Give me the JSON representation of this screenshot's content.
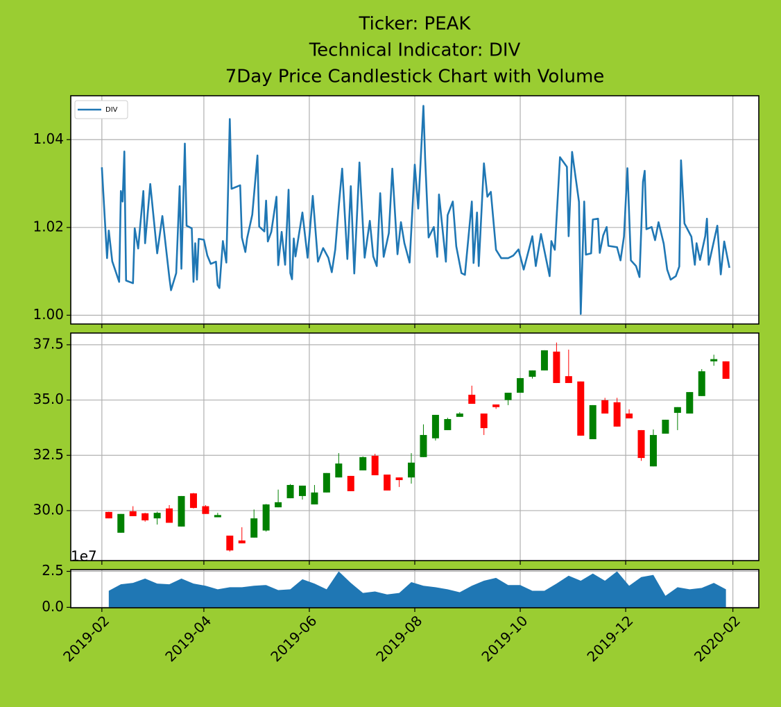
{
  "chart_data": [
    {
      "type": "line",
      "title": [
        "Ticker: PEAK",
        "Technical Indicator: DIV",
        "7Day Price Candlestick Chart with Volume"
      ],
      "legend": "upper left",
      "grid": true,
      "xlim": [
        "2019-01-14",
        "2020-02-16"
      ],
      "ylim": [
        0.998,
        1.05
      ],
      "yticks": [
        {
          "value": 1.0,
          "label": "1.00"
        },
        {
          "value": 1.02,
          "label": "1.02"
        },
        {
          "value": 1.04,
          "label": "1.04"
        }
      ],
      "x": [
        "2019-02-01",
        "2019-02-04",
        "2019-02-05",
        "2019-02-07",
        "2019-02-11",
        "2019-02-12",
        "2019-02-13",
        "2019-02-14",
        "2019-02-15",
        "2019-02-19",
        "2019-02-20",
        "2019-02-22",
        "2019-02-25",
        "2019-02-26",
        "2019-03-01",
        "2019-03-05",
        "2019-03-08",
        "2019-03-12",
        "2019-03-13",
        "2019-03-16",
        "2019-03-18",
        "2019-03-19",
        "2019-03-21",
        "2019-03-22",
        "2019-03-25",
        "2019-03-26",
        "2019-03-27",
        "2019-03-28",
        "2019-03-29",
        "2019-04-01",
        "2019-04-03",
        "2019-04-05",
        "2019-04-08",
        "2019-04-09",
        "2019-04-10",
        "2019-04-12",
        "2019-04-14",
        "2019-04-16",
        "2019-04-17",
        "2019-04-22",
        "2019-04-23",
        "2019-04-25",
        "2019-04-26",
        "2019-04-29",
        "2019-05-02",
        "2019-05-03",
        "2019-05-06",
        "2019-05-07",
        "2019-05-08",
        "2019-05-10",
        "2019-05-13",
        "2019-05-14",
        "2019-05-16",
        "2019-05-18",
        "2019-05-20",
        "2019-05-21",
        "2019-05-22",
        "2019-05-23",
        "2019-05-24",
        "2019-05-28",
        "2019-05-31",
        "2019-06-03",
        "2019-06-06",
        "2019-06-09",
        "2019-06-12",
        "2019-06-14",
        "2019-06-16",
        "2019-06-18",
        "2019-06-20",
        "2019-06-23",
        "2019-06-25",
        "2019-06-27",
        "2019-06-30",
        "2019-07-03",
        "2019-07-06",
        "2019-07-08",
        "2019-07-10",
        "2019-07-12",
        "2019-07-14",
        "2019-07-17",
        "2019-07-19",
        "2019-07-22",
        "2019-07-24",
        "2019-07-26",
        "2019-07-29",
        "2019-08-01",
        "2019-08-03",
        "2019-08-06",
        "2019-08-07",
        "2019-08-09",
        "2019-08-12",
        "2019-08-14",
        "2019-08-15",
        "2019-08-19",
        "2019-08-20",
        "2019-08-23",
        "2019-08-25",
        "2019-08-28",
        "2019-08-30",
        "2019-09-03",
        "2019-09-04",
        "2019-09-06",
        "2019-09-07",
        "2019-09-10",
        "2019-09-12",
        "2019-09-14",
        "2019-09-17",
        "2019-09-20",
        "2019-09-24",
        "2019-09-27",
        "2019-09-30",
        "2019-10-03",
        "2019-10-08",
        "2019-10-10",
        "2019-10-13",
        "2019-10-18",
        "2019-10-19",
        "2019-10-21",
        "2019-10-24",
        "2019-10-28",
        "2019-10-29",
        "2019-10-31",
        "2019-11-04",
        "2019-11-05",
        "2019-11-07",
        "2019-11-08",
        "2019-11-11",
        "2019-11-12",
        "2019-11-15",
        "2019-11-16",
        "2019-11-18",
        "2019-11-20",
        "2019-11-21",
        "2019-11-26",
        "2019-11-28",
        "2019-11-30",
        "2019-12-02",
        "2019-12-04",
        "2019-12-07",
        "2019-12-09",
        "2019-12-11",
        "2019-12-12",
        "2019-12-13",
        "2019-12-16",
        "2019-12-18",
        "2019-12-20",
        "2019-12-23",
        "2019-12-25",
        "2019-12-27",
        "2019-12-30",
        "2020-01-01",
        "2020-01-02",
        "2020-01-04",
        "2020-01-08",
        "2020-01-10",
        "2020-01-11",
        "2020-01-13",
        "2020-01-16",
        "2020-01-17",
        "2020-01-18",
        "2020-01-23",
        "2020-01-25",
        "2020-01-27",
        "2020-01-30"
      ],
      "series": [
        {
          "name": "DIV",
          "color": "#1f77b4",
          "values": [
            1.0337,
            1.013,
            1.0193,
            1.0123,
            1.0076,
            1.0283,
            1.0259,
            1.0373,
            1.0079,
            1.0073,
            1.0198,
            1.0152,
            1.0283,
            1.0164,
            1.0299,
            1.0141,
            1.0226,
            1.0087,
            1.0057,
            1.0096,
            1.0294,
            1.0106,
            1.0391,
            1.0204,
            1.0198,
            1.0076,
            1.0164,
            1.0081,
            1.0174,
            1.0172,
            1.0136,
            1.0117,
            1.0122,
            1.0068,
            1.0062,
            1.0169,
            1.012,
            1.0447,
            1.0288,
            1.0296,
            1.0177,
            1.0144,
            1.0175,
            1.0229,
            1.0364,
            1.0202,
            1.0191,
            1.0261,
            1.0168,
            1.019,
            1.027,
            1.0114,
            1.019,
            1.0115,
            1.0286,
            1.0096,
            1.0082,
            1.0175,
            1.0134,
            1.0234,
            1.0131,
            1.0272,
            1.0122,
            1.0153,
            1.0131,
            1.0098,
            1.015,
            1.0247,
            1.0334,
            1.0128,
            1.0294,
            1.0095,
            1.0348,
            1.0131,
            1.0215,
            1.0134,
            1.0112,
            1.0278,
            1.0133,
            1.0187,
            1.0334,
            1.0139,
            1.0212,
            1.0164,
            1.012,
            1.0343,
            1.0243,
            1.0477,
            1.0357,
            1.0177,
            1.0201,
            1.0133,
            1.0275,
            1.0122,
            1.0228,
            1.0259,
            1.0157,
            1.0096,
            1.0092,
            1.0259,
            1.0119,
            1.0234,
            1.0112,
            1.0346,
            1.027,
            1.0281,
            1.0149,
            1.013,
            1.013,
            1.0136,
            1.015,
            1.0104,
            1.018,
            1.0112,
            1.0185,
            1.0089,
            1.0169,
            1.0149,
            1.036,
            1.0338,
            1.018,
            1.0372,
            1.0258,
            1.0003,
            1.0259,
            1.0138,
            1.0141,
            1.0218,
            1.022,
            1.0142,
            1.0182,
            1.0201,
            1.0158,
            1.0155,
            1.0125,
            1.0179,
            1.0335,
            1.0125,
            1.0112,
            1.0087,
            1.0304,
            1.0329,
            1.0196,
            1.0201,
            1.0171,
            1.0212,
            1.0163,
            1.0104,
            1.0081,
            1.0089,
            1.0111,
            1.0353,
            1.0209,
            1.0179,
            1.0115,
            1.0164,
            1.0126,
            1.018,
            1.022,
            1.0115,
            1.0204,
            1.0093,
            1.0168,
            1.0108
          ]
        }
      ]
    },
    {
      "type": "candlestick",
      "grid": true,
      "up_color": "#008000",
      "down_color": "#ff0000",
      "xlim": [
        "2019-01-14",
        "2020-02-16"
      ],
      "ylim": [
        27.74,
        38.03
      ],
      "yticks": [
        {
          "value": 30,
          "label": "30.0"
        },
        {
          "value": 32.5,
          "label": "32.5"
        },
        {
          "value": 35,
          "label": "35.0"
        },
        {
          "value": 37.5,
          "label": "37.5"
        }
      ],
      "x": [
        "2019-02-05",
        "2019-02-12",
        "2019-02-19",
        "2019-02-26",
        "2019-03-05",
        "2019-03-12",
        "2019-03-19",
        "2019-03-26",
        "2019-04-02",
        "2019-04-09",
        "2019-04-16",
        "2019-04-23",
        "2019-04-30",
        "2019-05-07",
        "2019-05-14",
        "2019-05-21",
        "2019-05-28",
        "2019-06-04",
        "2019-06-11",
        "2019-06-18",
        "2019-06-25",
        "2019-07-02",
        "2019-07-09",
        "2019-07-16",
        "2019-07-23",
        "2019-07-30",
        "2019-08-06",
        "2019-08-13",
        "2019-08-20",
        "2019-08-27",
        "2019-09-03",
        "2019-09-10",
        "2019-09-17",
        "2019-09-24",
        "2019-10-01",
        "2019-10-08",
        "2019-10-15",
        "2019-10-22",
        "2019-10-29",
        "2019-11-05",
        "2019-11-12",
        "2019-11-19",
        "2019-11-26",
        "2019-12-03",
        "2019-12-10",
        "2019-12-17",
        "2019-12-24",
        "2019-12-31",
        "2020-01-07",
        "2020-01-14",
        "2020-01-21",
        "2020-01-28"
      ],
      "open": [
        29.94,
        29.0,
        29.97,
        29.88,
        29.65,
        30.1,
        29.28,
        30.78,
        30.2,
        29.7,
        28.87,
        28.65,
        28.78,
        29.1,
        30.15,
        30.56,
        30.66,
        30.28,
        30.82,
        31.5,
        31.57,
        31.82,
        32.48,
        31.63,
        31.5,
        31.5,
        32.42,
        33.27,
        33.64,
        34.24,
        35.24,
        34.39,
        34.8,
        35.0,
        35.33,
        36.05,
        36.34,
        37.19,
        36.08,
        35.84,
        33.23,
        34.99,
        34.9,
        34.39,
        33.64,
        32.0,
        33.48,
        34.42,
        34.39,
        35.18,
        36.75,
        36.75
      ],
      "high": [
        29.95,
        29.85,
        30.2,
        29.9,
        29.95,
        30.25,
        30.66,
        30.8,
        30.25,
        29.9,
        28.87,
        29.25,
        30.05,
        30.3,
        30.95,
        31.2,
        31.13,
        31.16,
        31.7,
        32.6,
        31.57,
        32.45,
        32.57,
        31.63,
        31.5,
        32.6,
        33.9,
        34.33,
        34.2,
        34.45,
        35.65,
        34.39,
        34.8,
        35.33,
        36.0,
        36.34,
        37.25,
        37.6,
        37.28,
        35.84,
        34.77,
        35.1,
        35.1,
        34.58,
        33.64,
        33.67,
        34.11,
        34.68,
        35.36,
        36.4,
        37.05,
        36.75
      ],
      "low": [
        29.65,
        29.0,
        29.75,
        29.5,
        29.37,
        29.45,
        29.28,
        30.1,
        29.85,
        29.7,
        28.15,
        28.52,
        28.78,
        29.05,
        30.15,
        30.56,
        30.5,
        30.28,
        30.82,
        31.5,
        30.88,
        31.82,
        31.6,
        30.91,
        31.07,
        31.22,
        32.42,
        33.17,
        33.64,
        34.24,
        34.83,
        33.42,
        34.6,
        34.77,
        35.33,
        35.97,
        36.34,
        35.77,
        35.77,
        33.39,
        33.23,
        34.39,
        33.8,
        34.17,
        32.25,
        32.0,
        33.48,
        33.64,
        34.39,
        35.18,
        36.55,
        35.96
      ],
      "close": [
        29.65,
        29.85,
        29.75,
        29.56,
        29.9,
        29.45,
        30.66,
        30.12,
        29.85,
        29.8,
        28.2,
        28.52,
        29.65,
        30.28,
        30.38,
        31.16,
        31.13,
        30.82,
        31.7,
        32.13,
        30.88,
        32.42,
        31.6,
        30.91,
        31.38,
        32.17,
        33.42,
        34.33,
        34.14,
        34.39,
        34.83,
        33.73,
        34.68,
        35.33,
        35.99,
        36.34,
        37.25,
        35.77,
        35.77,
        33.39,
        34.77,
        34.39,
        33.8,
        34.17,
        32.38,
        33.42,
        34.11,
        34.68,
        35.36,
        36.3,
        36.85,
        35.96
      ]
    },
    {
      "type": "area",
      "grid": true,
      "color": "#1f77b4",
      "offset_label": "1e7",
      "xlim": [
        "2019-01-14",
        "2020-02-16"
      ],
      "ylim": [
        -0.03,
        2.62
      ],
      "yticks": [
        {
          "value": 0,
          "label": "0.0"
        },
        2.5
      ],
      "xticks": [
        {
          "value": "2019-02-01",
          "label": "2019-02"
        },
        {
          "value": "2019-04-01",
          "label": "2019-04"
        },
        {
          "value": "2019-06-01",
          "label": "2019-06"
        },
        {
          "value": "2019-08-01",
          "label": "2019-08"
        },
        {
          "value": "2019-10-01",
          "label": "2019-10"
        },
        {
          "value": "2019-12-01",
          "label": "2019-12"
        },
        {
          "value": "2020-02-01",
          "label": "2020-02"
        }
      ],
      "x": [
        "2019-02-05",
        "2019-02-12",
        "2019-02-19",
        "2019-02-26",
        "2019-03-05",
        "2019-03-12",
        "2019-03-19",
        "2019-03-26",
        "2019-04-02",
        "2019-04-09",
        "2019-04-16",
        "2019-04-23",
        "2019-04-30",
        "2019-05-07",
        "2019-05-14",
        "2019-05-21",
        "2019-05-28",
        "2019-06-04",
        "2019-06-11",
        "2019-06-18",
        "2019-06-25",
        "2019-07-02",
        "2019-07-09",
        "2019-07-16",
        "2019-07-23",
        "2019-07-30",
        "2019-08-06",
        "2019-08-13",
        "2019-08-20",
        "2019-08-27",
        "2019-09-03",
        "2019-09-10",
        "2019-09-17",
        "2019-09-24",
        "2019-10-01",
        "2019-10-08",
        "2019-10-15",
        "2019-10-22",
        "2019-10-29",
        "2019-11-05",
        "2019-11-12",
        "2019-11-19",
        "2019-11-26",
        "2019-12-03",
        "2019-12-10",
        "2019-12-17",
        "2019-12-24",
        "2019-12-31",
        "2020-01-07",
        "2020-01-14",
        "2020-01-21",
        "2020-01-28"
      ],
      "values": [
        1.15,
        1.6,
        1.7,
        2.0,
        1.65,
        1.6,
        2.0,
        1.65,
        1.5,
        1.25,
        1.4,
        1.4,
        1.5,
        1.55,
        1.2,
        1.25,
        1.95,
        1.65,
        1.25,
        2.5,
        1.7,
        1.0,
        1.1,
        0.9,
        1.0,
        1.75,
        1.5,
        1.4,
        1.25,
        1.05,
        1.5,
        1.85,
        2.05,
        1.55,
        1.55,
        1.15,
        1.15,
        1.65,
        2.2,
        1.85,
        2.35,
        1.85,
        2.5,
        1.5,
        2.1,
        2.25,
        0.8,
        1.4,
        1.25,
        1.35,
        1.7,
        1.25
      ]
    }
  ]
}
